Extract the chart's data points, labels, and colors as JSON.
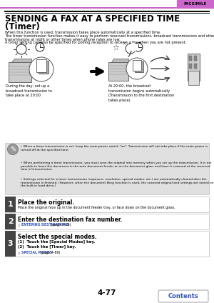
{
  "page_num": "4-77",
  "tab_label": "FACSIMILE",
  "tab_color": "#cc66cc",
  "title_line1": "SENDING A FAX AT A SPECIFIED TIME",
  "title_line2": "(Timer)",
  "intro_text": [
    "When this function is used, transmission takes place automatically at a specified time.",
    "The timer transmission function makes it easy to perform reserved transmissions, broadcast transmissions and other",
    "transmissions at night or other times when phone rates are low.",
    "A timer setting can also be specified for polling reception to receive a fax when you are not present."
  ],
  "caption_left": "During the day, set up a\nbroadcast transmission to\ntake place at 20:00",
  "caption_right": "At 20:00, the broadcast\ntransmission begins automatically\n(Transmission to the first destination\ntakes place)",
  "note_bullets": [
    "When a timer transmission is set, keep the main power switch \"on\". Transmission will not take place if the main power is turned off at the specified time.",
    "When performing a timer transmission, you must scan the original into memory when you set up the transmission. It is not possible to leave the document in the auto document feeder or on the document glass and have it scanned at the reserved time of transmission.",
    "Settings selected for a timer transmission (exposure, resolution, special modes, etc.) are automatically cleared after the transmission is finished. (However, when the document filing function is used, the scanned original and settings are stored on the built-in hard drive.)"
  ],
  "step1_title": "Place the original.",
  "step1_body": "Place the original face up in the document feeder tray, or face down on the document glass.",
  "step2_title": "Enter the destination fax number.",
  "step2_link": "ENTERING DESTINATIONS",
  "step2_suffix": " (page 4-16)",
  "step3_title": "Select the special modes.",
  "step3_sub1": "(1)  Touch the [Special Modes] key.",
  "step3_sub2": "(2)  Touch the [Timer] key.",
  "step3_link": "SPECIAL MODES",
  "step3_suffix": " (page 4-69)",
  "contents_btn": "Contents",
  "bg_color": "#ffffff",
  "tab_text_color": "#000000",
  "header_line_color": "#bb44bb",
  "note_bg": "#e0e0e0",
  "step_num_bg": "#444444",
  "step_num_color": "#ffffff",
  "rule_color": "#111111",
  "link_color": "#3355bb",
  "icon_bg": "#888888"
}
